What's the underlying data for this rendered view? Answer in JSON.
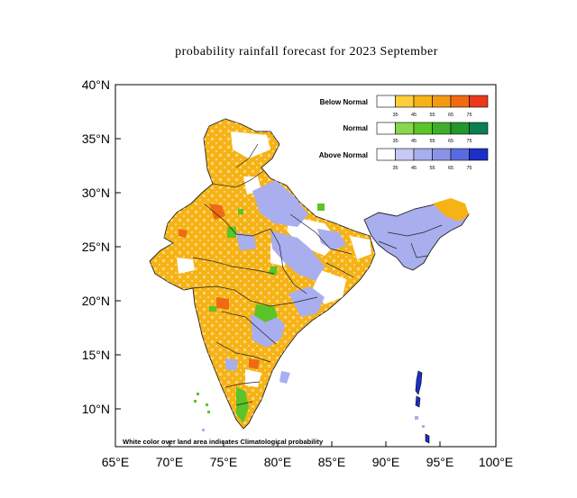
{
  "title": "probability rainfall forecast for 2023 September",
  "axes": {
    "lon_ticks": [
      "65°E",
      "70°E",
      "75°E",
      "80°E",
      "85°E",
      "90°E",
      "95°E",
      "100°E"
    ],
    "lat_ticks": [
      "40°N",
      "35°N",
      "30°N",
      "25°N",
      "20°N",
      "15°N",
      "10°N"
    ]
  },
  "legend": {
    "rows": [
      {
        "label": "Below Normal",
        "colors": [
          "#ffffff",
          "#ffce3a",
          "#f6b316",
          "#f39a12",
          "#ef6a13",
          "#e9391b"
        ]
      },
      {
        "label": "Normal",
        "colors": [
          "#ffffff",
          "#8ad64c",
          "#5bc428",
          "#3fae2a",
          "#23962d",
          "#0b7f52"
        ]
      },
      {
        "label": "Above Normal",
        "colors": [
          "#ffffff",
          "#c7c9f5",
          "#a9aeee",
          "#8b93e7",
          "#5a6be0",
          "#1c2fc6"
        ]
      }
    ],
    "ticks": [
      "35",
      "45",
      "55",
      "65",
      "75"
    ]
  },
  "footnote": "White color over land area indicates Climatological probability",
  "colors": {
    "below": "#f6b316",
    "below_dark": "#ef6a13",
    "normal": "#5bc428",
    "above": "#a9aeee",
    "above_dark": "#1c2fc6"
  }
}
